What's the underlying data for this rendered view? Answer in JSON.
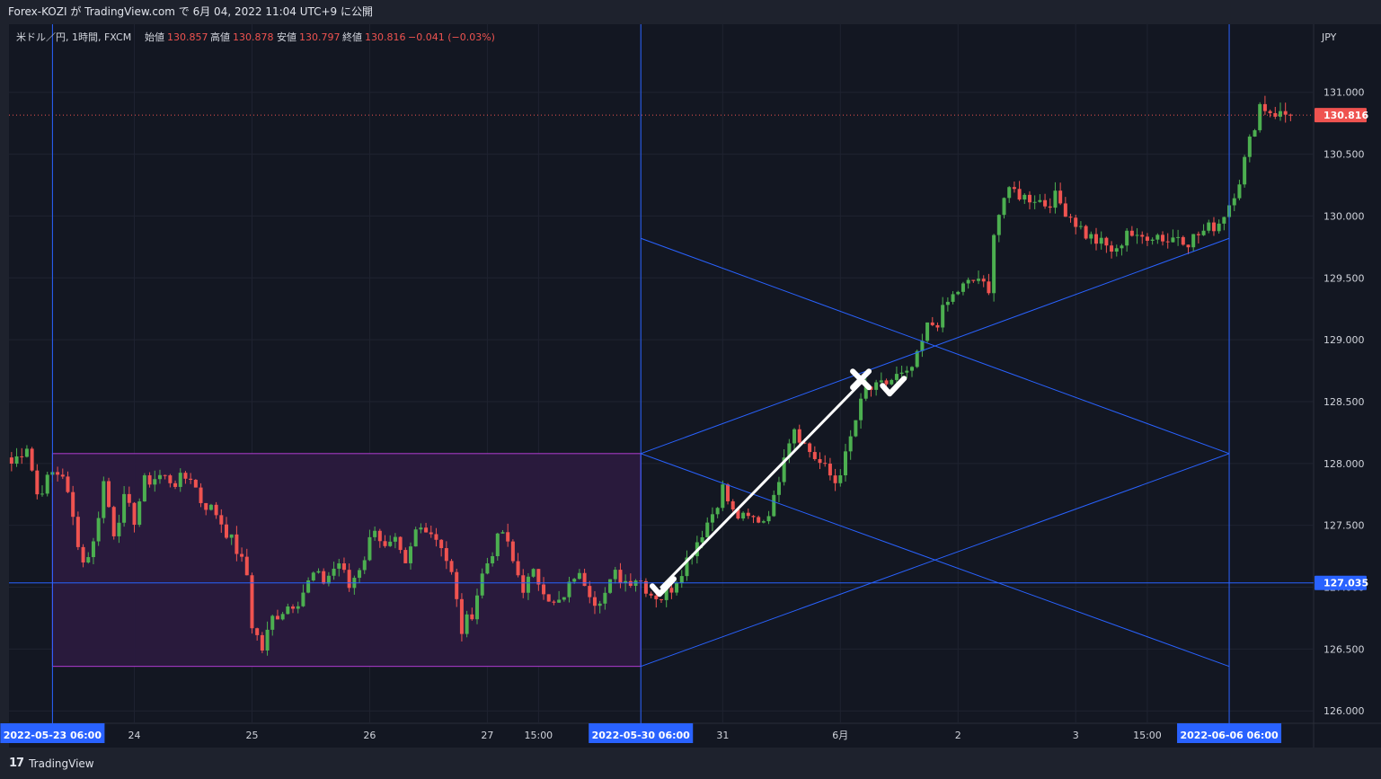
{
  "header": {
    "publish_line": "Forex-KOZI が TradingView.com で 6月 04, 2022 11:04 UTC+9 に公開"
  },
  "legend": {
    "symbol": "米ドル／円, 1時間, FXCM",
    "open_label": "始値",
    "open_value": "130.857",
    "high_label": "高値",
    "high_value": "130.878",
    "low_label": "安値",
    "low_value": "130.797",
    "close_label": "終値",
    "close_value": "130.816",
    "change": "−0.041 (−0.03%)"
  },
  "axis": {
    "currency": "JPY",
    "last_price_tag": "130.816",
    "hline_tag": "127.035"
  },
  "footer": {
    "brand_logo": "17",
    "brand_name": "TradingView"
  },
  "colors": {
    "background": "#131722",
    "frame": "#1e222d",
    "up": "#26a69a",
    "up_candle": "#4caf50",
    "down": "#ef5350",
    "blue_line": "#2962ff",
    "box_fill": "#2a1a3e",
    "box_border": "#b03bd1",
    "last_price": "#ef5350",
    "annotation": "#ffffff"
  },
  "chart_data": {
    "type": "candlestick",
    "symbol": "米ドル／円",
    "timeframe": "1時間",
    "ylim": [
      125.9,
      131.55
    ],
    "y_ticks": [
      126.0,
      126.5,
      127.0,
      127.5,
      128.0,
      128.5,
      129.0,
      129.5,
      130.0,
      130.5,
      131.0
    ],
    "y_tick_labels": [
      "126.000",
      "126.500",
      "127.000",
      "127.500",
      "128.000",
      "128.500",
      "129.000",
      "129.500",
      "130.000",
      "130.500",
      "131.000"
    ],
    "x_ticks": [
      {
        "label": "2022-05-23   06:00",
        "bar": 8,
        "highlight": true
      },
      {
        "label": "24",
        "bar": 24
      },
      {
        "label": "25",
        "bar": 47
      },
      {
        "label": "26",
        "bar": 70
      },
      {
        "label": "27",
        "bar": 93
      },
      {
        "label": "15:00",
        "bar": 103
      },
      {
        "label": "2022-05-30   06:00",
        "bar": 123,
        "highlight": true
      },
      {
        "label": "31",
        "bar": 139
      },
      {
        "label": "6月",
        "bar": 162
      },
      {
        "label": "2",
        "bar": 185
      },
      {
        "label": "3",
        "bar": 208
      },
      {
        "label": "15:00",
        "bar": 222
      },
      {
        "label": "2022-06-06   06:00",
        "bar": 238,
        "highlight": true
      }
    ],
    "waypoints": [
      [
        0,
        128.0
      ],
      [
        3,
        128.15
      ],
      [
        5,
        127.75
      ],
      [
        8,
        127.92
      ],
      [
        10,
        127.92
      ],
      [
        12,
        127.55
      ],
      [
        14,
        127.2
      ],
      [
        16,
        127.35
      ],
      [
        18,
        127.85
      ],
      [
        20,
        127.45
      ],
      [
        22,
        127.7
      ],
      [
        24,
        127.55
      ],
      [
        26,
        127.85
      ],
      [
        29,
        127.9
      ],
      [
        32,
        127.85
      ],
      [
        35,
        127.9
      ],
      [
        37,
        127.7
      ],
      [
        40,
        127.6
      ],
      [
        42,
        127.45
      ],
      [
        44,
        127.3
      ],
      [
        46,
        127.1
      ],
      [
        47,
        126.7
      ],
      [
        49,
        126.5
      ],
      [
        51,
        126.75
      ],
      [
        54,
        126.85
      ],
      [
        56,
        126.9
      ],
      [
        59,
        127.1
      ],
      [
        61,
        127.05
      ],
      [
        64,
        127.2
      ],
      [
        66,
        127.0
      ],
      [
        69,
        127.25
      ],
      [
        71,
        127.5
      ],
      [
        73,
        127.3
      ],
      [
        75,
        127.35
      ],
      [
        77,
        127.15
      ],
      [
        79,
        127.45
      ],
      [
        81,
        127.5
      ],
      [
        84,
        127.35
      ],
      [
        86,
        127.1
      ],
      [
        88,
        126.65
      ],
      [
        90,
        126.8
      ],
      [
        92,
        127.1
      ],
      [
        94,
        127.3
      ],
      [
        96,
        127.45
      ],
      [
        98,
        127.2
      ],
      [
        100,
        127.0
      ],
      [
        102,
        127.1
      ],
      [
        104,
        127.0
      ],
      [
        106,
        126.85
      ],
      [
        108,
        126.9
      ],
      [
        110,
        127.1
      ],
      [
        112,
        127.05
      ],
      [
        114,
        126.9
      ],
      [
        116,
        126.95
      ],
      [
        118,
        127.1
      ],
      [
        120,
        127.05
      ],
      [
        122,
        127.08
      ],
      [
        123,
        127.05
      ],
      [
        125,
        126.95
      ],
      [
        127,
        126.92
      ],
      [
        129,
        127.0
      ],
      [
        131,
        127.15
      ],
      [
        133,
        127.3
      ],
      [
        135,
        127.45
      ],
      [
        137,
        127.6
      ],
      [
        139,
        127.8
      ],
      [
        141,
        127.6
      ],
      [
        143,
        127.55
      ],
      [
        145,
        127.55
      ],
      [
        147,
        127.55
      ],
      [
        149,
        127.7
      ],
      [
        151,
        128.1
      ],
      [
        153,
        128.3
      ],
      [
        155,
        128.15
      ],
      [
        157,
        128.05
      ],
      [
        159,
        127.95
      ],
      [
        161,
        127.85
      ],
      [
        163,
        128.05
      ],
      [
        165,
        128.35
      ],
      [
        167,
        128.6
      ],
      [
        169,
        128.6
      ],
      [
        171,
        128.65
      ],
      [
        173,
        128.7
      ],
      [
        175,
        128.7
      ],
      [
        177,
        128.85
      ],
      [
        179,
        129.1
      ],
      [
        181,
        129.15
      ],
      [
        183,
        129.3
      ],
      [
        185,
        129.4
      ],
      [
        187,
        129.45
      ],
      [
        189,
        129.5
      ],
      [
        191,
        129.35
      ],
      [
        192,
        129.9
      ],
      [
        194,
        130.15
      ],
      [
        196,
        130.2
      ],
      [
        198,
        130.15
      ],
      [
        200,
        130.15
      ],
      [
        202,
        130.1
      ],
      [
        204,
        130.15
      ],
      [
        206,
        130.05
      ],
      [
        208,
        129.95
      ],
      [
        210,
        129.85
      ],
      [
        212,
        129.8
      ],
      [
        214,
        129.75
      ],
      [
        216,
        129.7
      ],
      [
        218,
        129.9
      ],
      [
        220,
        129.8
      ],
      [
        222,
        129.85
      ],
      [
        224,
        129.85
      ],
      [
        226,
        129.8
      ],
      [
        228,
        129.85
      ],
      [
        230,
        129.8
      ],
      [
        232,
        129.85
      ],
      [
        234,
        129.9
      ],
      [
        236,
        129.95
      ],
      [
        238,
        130.1
      ],
      [
        240,
        130.3
      ],
      [
        242,
        130.6
      ],
      [
        244,
        130.9
      ],
      [
        246,
        130.85
      ],
      [
        248,
        130.82
      ],
      [
        250,
        130.82
      ]
    ],
    "last_close": 130.816,
    "horizontal_line": 127.035,
    "vertical_lines_bars": [
      8,
      123,
      238
    ],
    "range_box": {
      "bar_start": 8,
      "bar_end": 123,
      "top": 128.08,
      "bottom": 126.36
    },
    "trend_lines": [
      {
        "from": [
          123,
          128.08
        ],
        "to": [
          238,
          129.82
        ]
      },
      {
        "from": [
          123,
          128.08
        ],
        "to": [
          238,
          126.36
        ]
      },
      {
        "from": [
          123,
          126.36
        ],
        "to": [
          238,
          128.08
        ]
      },
      {
        "from": [
          123,
          129.82
        ],
        "to": [
          238,
          128.08
        ]
      }
    ],
    "annotations": [
      {
        "kind": "arrow-line",
        "from": [
          127,
          127.0
        ],
        "to": [
          166,
          128.65
        ]
      },
      {
        "kind": "check",
        "at": [
          127,
          126.98
        ]
      },
      {
        "kind": "cross",
        "at": [
          166,
          128.68
        ]
      },
      {
        "kind": "check",
        "at": [
          172,
          128.6
        ]
      }
    ]
  }
}
